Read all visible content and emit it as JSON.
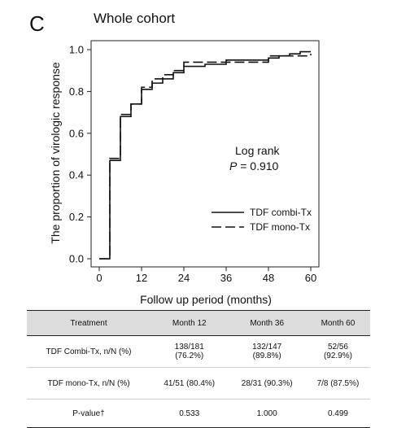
{
  "panel": {
    "letter": "C",
    "title": "Whole cohort"
  },
  "chart_data": {
    "type": "line",
    "subtype": "kaplan-meier-step",
    "xlabel": "Follow up period (months)",
    "ylabel": "The proportion of virologic response",
    "xlim": [
      0,
      60
    ],
    "ylim": [
      0,
      1.0
    ],
    "xticks": [
      0,
      12,
      24,
      36,
      48,
      60
    ],
    "yticks": [
      0.0,
      0.2,
      0.4,
      0.6,
      0.8,
      1.0
    ],
    "xtick_labels": [
      "0",
      "12",
      "24",
      "36",
      "48",
      "60"
    ],
    "ytick_labels": [
      "0.0",
      "0.2",
      "0.4",
      "0.6",
      "0.8",
      "1.0"
    ],
    "annotation": {
      "line1": "Log rank",
      "p_symbol": "P",
      "p_value": " = 0.910"
    },
    "legend_position": "right-lower",
    "series": [
      {
        "name": "TDF combi-Tx",
        "style": "solid",
        "x": [
          0,
          3,
          6,
          9,
          12,
          15,
          18,
          21,
          24,
          30,
          36,
          48,
          51,
          54,
          57,
          60
        ],
        "y": [
          0.0,
          0.47,
          0.68,
          0.74,
          0.81,
          0.84,
          0.86,
          0.89,
          0.92,
          0.93,
          0.95,
          0.96,
          0.97,
          0.98,
          0.99,
          0.99
        ]
      },
      {
        "name": "TDF mono-Tx",
        "style": "dashed",
        "x": [
          0,
          3,
          6,
          9,
          12,
          15,
          18,
          21,
          24,
          36,
          48,
          60
        ],
        "y": [
          0.0,
          0.48,
          0.69,
          0.74,
          0.82,
          0.86,
          0.88,
          0.9,
          0.94,
          0.94,
          0.97,
          0.98
        ]
      }
    ]
  },
  "table": {
    "headers": [
      "Treatment",
      "Month 12",
      "Month 36",
      "Month 60"
    ],
    "rows": [
      {
        "label": "TDF Combi-Tx, n/N (%)",
        "m12": "138/181\n(76.2%)",
        "m36": "132/147\n(89.8%)",
        "m60": "52/56\n(92.9%)"
      },
      {
        "label": "TDF mono-Tx, n/N (%)",
        "m12": "41/51 (80.4%)",
        "m36": "28/31 (90.3%)",
        "m60": "7/8 (87.5%)"
      },
      {
        "label": "P-value†",
        "m12": "0.533",
        "m36": "1.000",
        "m60": "0.499"
      }
    ]
  }
}
